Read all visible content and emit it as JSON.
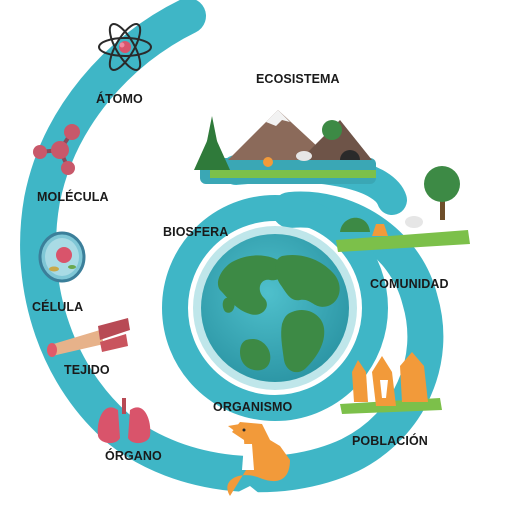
{
  "levels": {
    "atomo": "ÁTOMO",
    "molecula": "MOLÉCULA",
    "celula": "CÉLULA",
    "tejido": "TEJIDO",
    "organo": "ÓRGANO",
    "organismo": "ORGANISMO",
    "poblacion": "POBLACIÓN",
    "comunidad": "COMUNIDAD",
    "ecosistema": "ECOSISTEMA",
    "biosfera": "BIOSFERA"
  },
  "icons": {
    "atomo": "atom-icon",
    "molecula": "molecule-icon",
    "celula": "cell-icon",
    "tejido": "muscle-tissue-icon",
    "organo": "lungs-icon",
    "organismo": "fox-icon",
    "poblacion": "fox-group-icon",
    "comunidad": "meadow-community-icon",
    "ecosistema": "mountain-lake-ecosystem-icon",
    "biosfera": "earth-globe-icon"
  },
  "colors": {
    "spiral": "#3fb6c6",
    "spiral_dark": "#2a9fb0",
    "ocean": "#3aa7b5",
    "land": "#3d8a45",
    "fox": "#f29a3a",
    "grass": "#7cc04a"
  }
}
